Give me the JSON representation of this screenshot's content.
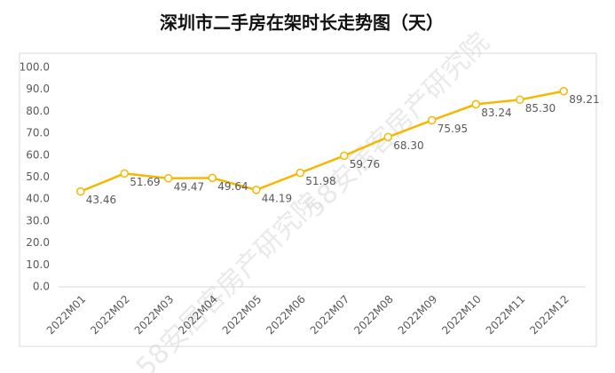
{
  "chart_data": {
    "type": "line",
    "title": "深圳市二手房在架时长走势图（天）",
    "watermark": "58安居客房产研究院",
    "categories": [
      "2022M01",
      "2022M02",
      "2022M03",
      "2022M04",
      "2022M05",
      "2022M06",
      "2022M07",
      "2022M08",
      "2022M09",
      "2022M10",
      "2022M11",
      "2022M12"
    ],
    "series": [
      {
        "name": "在架时长",
        "color": "#f5b800",
        "values": [
          43.46,
          51.69,
          49.47,
          49.64,
          44.19,
          51.98,
          59.76,
          68.3,
          75.95,
          83.24,
          85.3,
          89.21
        ],
        "value_labels": [
          "43.46",
          "51.69",
          "49.47",
          "49.64",
          "44.19",
          "51.98",
          "59.76",
          "68.30",
          "75.95",
          "83.24",
          "85.30",
          "89.21"
        ]
      }
    ],
    "ylim": [
      0,
      100
    ],
    "yticks": [
      {
        "value": 0,
        "label": "0.0"
      },
      {
        "value": 10,
        "label": "10.0"
      },
      {
        "value": 20,
        "label": "20.0"
      },
      {
        "value": 30,
        "label": "30.0"
      },
      {
        "value": 40,
        "label": "40.0"
      },
      {
        "value": 50,
        "label": "50.0"
      },
      {
        "value": 60,
        "label": "60.0"
      },
      {
        "value": 70,
        "label": "70.0"
      },
      {
        "value": 80,
        "label": "80.0"
      },
      {
        "value": 90,
        "label": "90.0"
      },
      {
        "value": 100,
        "label": "100.0"
      }
    ],
    "grid": false
  }
}
